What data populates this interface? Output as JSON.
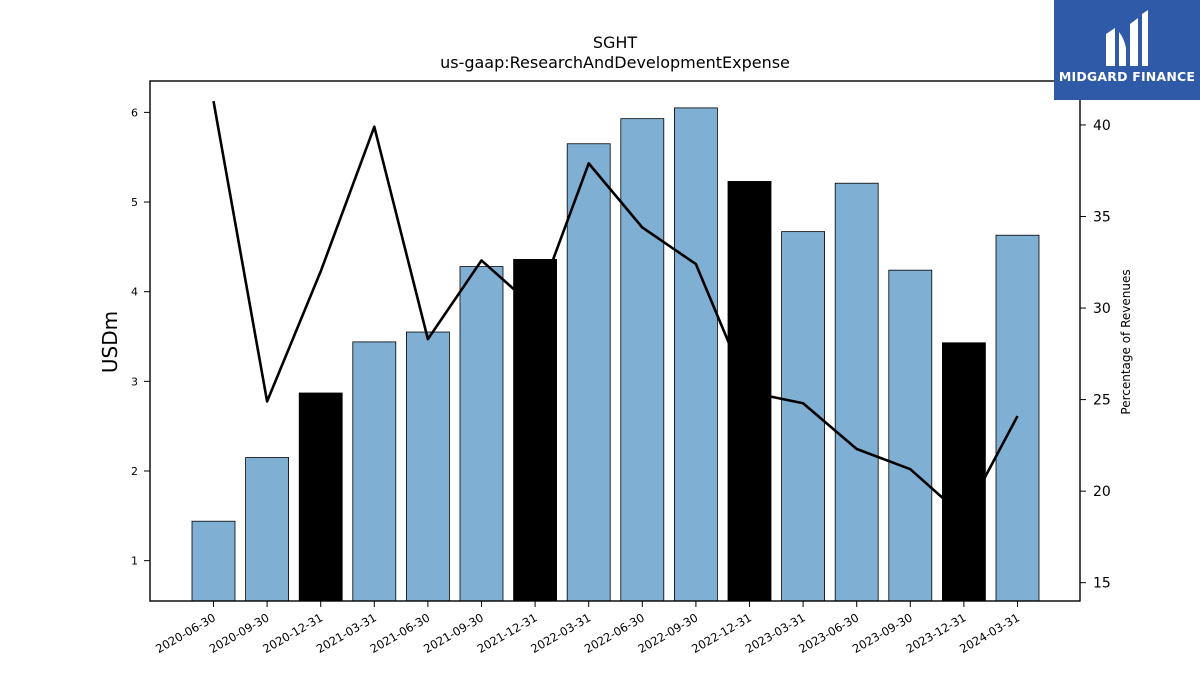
{
  "chart_data": {
    "type": "bar",
    "title": "SGHT",
    "subtitle": "us-gaap:ResearchAndDevelopmentExpense",
    "ylabel": "USDm",
    "y2label": "Percentage of Revenues",
    "categories": [
      "2020-06-30",
      "2020-09-30",
      "2020-12-31",
      "2021-03-31",
      "2021-06-30",
      "2021-09-30",
      "2021-12-31",
      "2022-03-31",
      "2022-06-30",
      "2022-09-30",
      "2022-12-31",
      "2023-03-31",
      "2023-06-30",
      "2023-09-30",
      "2023-12-31",
      "2024-03-31"
    ],
    "series": [
      {
        "values": [
          1.44,
          2.15,
          2.87,
          3.44,
          3.55,
          4.28,
          4.36,
          5.65,
          5.93,
          6.05,
          5.23,
          4.67,
          5.21,
          4.24,
          3.43,
          4.63
        ],
        "colors": [
          "#7fb0d4",
          "#7fb0d4",
          "#000000",
          "#7fb0d4",
          "#7fb0d4",
          "#7fb0d4",
          "#000000",
          "#7fb0d4",
          "#7fb0d4",
          "#7fb0d4",
          "#000000",
          "#7fb0d4",
          "#7fb0d4",
          "#7fb0d4",
          "#000000",
          "#7fb0d4"
        ]
      },
      {
        "axis": "right",
        "type": "line",
        "values": [
          41.3,
          24.9,
          32.0,
          39.9,
          28.3,
          32.6,
          30.0,
          37.9,
          34.4,
          32.4,
          25.4,
          24.8,
          22.3,
          21.2,
          18.6,
          24.1
        ]
      }
    ],
    "ylim": [
      0.55,
      6.35
    ],
    "y2lim": [
      14.0,
      42.4
    ],
    "yticks": [
      1,
      2,
      3,
      4,
      5,
      6
    ],
    "y2ticks": [
      15,
      20,
      25,
      30,
      35,
      40
    ],
    "legend": "none",
    "grid": false
  },
  "logo": {
    "text": "MIDGARD FINANCE",
    "bar_color": "#7fb0d4",
    "accent_color": "#000000",
    "line_color": "#000000",
    "brand_color": "#2f5aa8"
  }
}
